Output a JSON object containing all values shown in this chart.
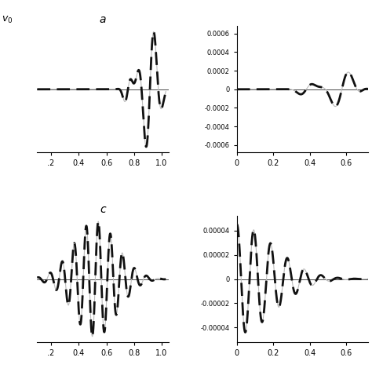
{
  "title_a": "a",
  "title_c": "c",
  "label_top_left": "v_0",
  "background_color": "#ffffff",
  "solid_color": "#bbbbbb",
  "solid_lw": 0.8,
  "dashed_color": "#111111",
  "dashed_lw": 2.0,
  "dashed_pattern": [
    6,
    3
  ],
  "panel_al": {
    "xlim": [
      0.1,
      1.05
    ],
    "xticks": [
      0.2,
      0.4,
      0.6,
      0.8,
      1.0
    ],
    "xticklabels": [
      ".2",
      "0.4",
      "0.6",
      "0.8",
      "1.0"
    ]
  },
  "panel_ar": {
    "xlim": [
      0.0,
      0.72
    ],
    "xticks": [
      0,
      0.2,
      0.4,
      0.6
    ],
    "xticklabels": [
      "0",
      "0.2",
      "0.4",
      "0.6"
    ],
    "ylim": [
      -0.00068,
      0.00068
    ],
    "yticks": [
      -0.0006,
      -0.0004,
      -0.0002,
      0,
      0.0002,
      0.0004,
      0.0006
    ],
    "yticklabels": [
      "-0.0006",
      "-0.0004",
      "-0.0002",
      "0",
      "0.0002",
      "0.0004",
      "0.0006"
    ]
  },
  "panel_cl": {
    "xlim": [
      0.1,
      1.05
    ],
    "xticks": [
      0.2,
      0.4,
      0.6,
      0.8,
      1.0
    ],
    "xticklabels": [
      ".2",
      "0.4",
      "0.6",
      "0.8",
      "1.0"
    ]
  },
  "panel_cr": {
    "xlim": [
      0.0,
      0.72
    ],
    "xticks": [
      0,
      0.2,
      0.4,
      0.6
    ],
    "xticklabels": [
      "0",
      "0.2",
      "0.4",
      "0.6"
    ],
    "ylim": [
      -5.2e-05,
      5.2e-05
    ],
    "yticks": [
      -4e-05,
      -2e-05,
      0,
      2e-05,
      4e-05
    ],
    "yticklabels": [
      "-0.00004",
      "-0.00002",
      "0",
      "0.00002",
      "0.00004"
    ]
  }
}
